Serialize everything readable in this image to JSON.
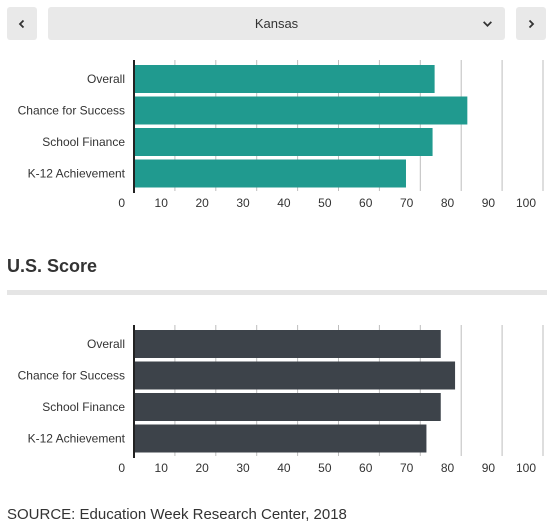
{
  "nav": {
    "prev_icon": "chevron-left-icon",
    "next_icon": "chevron-right-icon",
    "dropdown_icon": "chevron-down-icon",
    "selected_state": "Kansas"
  },
  "us_heading": "U.S. Score",
  "source": "SOURCE: Education Week Research Center, 2018",
  "chart_data": [
    {
      "type": "bar",
      "orientation": "horizontal",
      "categories": [
        "Overall",
        "Chance for Success",
        "School Finance",
        "K-12 Achievement"
      ],
      "values": [
        73.5,
        81.5,
        73,
        66.5
      ],
      "xlim": [
        0,
        100
      ],
      "ticks": [
        0,
        10,
        20,
        30,
        40,
        50,
        60,
        70,
        80,
        90,
        100
      ],
      "color": "#209a8f",
      "grid": true
    },
    {
      "type": "bar",
      "orientation": "horizontal",
      "categories": [
        "Overall",
        "Chance for Success",
        "School Finance",
        "K-12 Achievement"
      ],
      "values": [
        75,
        78.5,
        75,
        71.5
      ],
      "xlim": [
        0,
        100
      ],
      "ticks": [
        0,
        10,
        20,
        30,
        40,
        50,
        60,
        70,
        80,
        90,
        100
      ],
      "color": "#3d434a",
      "grid": true
    }
  ]
}
